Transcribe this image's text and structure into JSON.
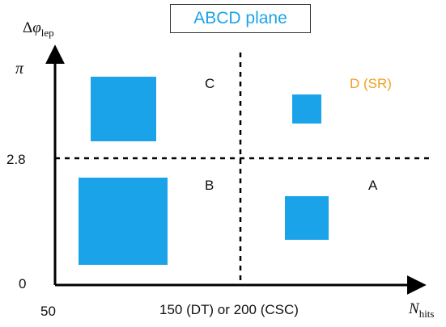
{
  "title": "ABCD plane",
  "axes": {
    "y_symbol": "Δ",
    "y_var": "φ",
    "y_sub": "lep",
    "x_var": "N",
    "x_sub": "hits",
    "y_ticks": {
      "top": "π",
      "mid": "2.8",
      "bottom": "0"
    },
    "x_ticks": {
      "left": "50",
      "mid": "150 (DT) or 200 (CSC)"
    }
  },
  "regions": {
    "a": "A",
    "b": "B",
    "c": "C",
    "d": "D (SR)"
  },
  "colors": {
    "box": "#1aa3e8",
    "signal_region": "#f0a020",
    "axis": "#000000"
  }
}
